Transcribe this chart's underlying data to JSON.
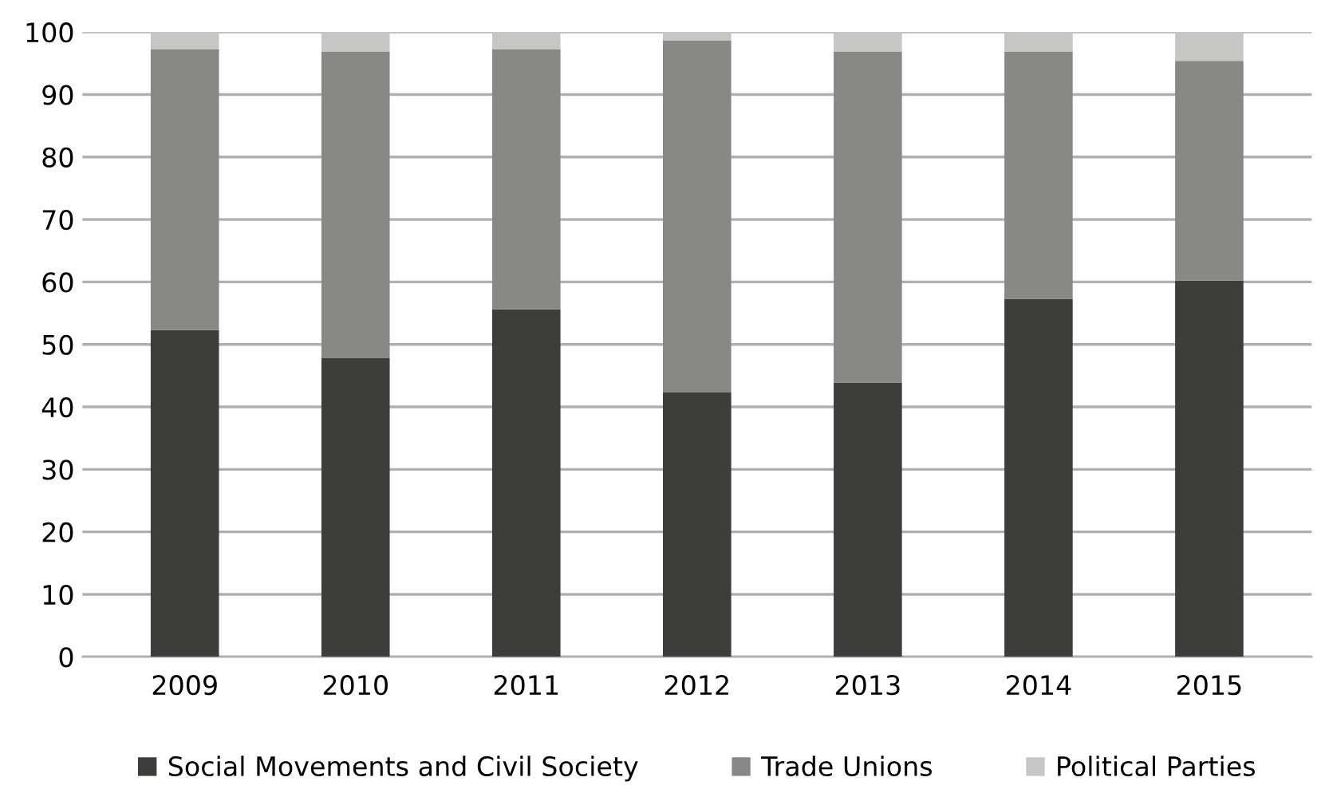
{
  "chart_data": {
    "type": "bar",
    "stacked": true,
    "categories": [
      "2009",
      "2010",
      "2011",
      "2012",
      "2013",
      "2014",
      "2015"
    ],
    "series": [
      {
        "name": "Social Movements and Civil Society",
        "color": "#3d3d3b",
        "values": [
          52.3,
          47.8,
          55.6,
          42.3,
          43.9,
          57.3,
          60.2
        ]
      },
      {
        "name": "Trade Unions",
        "color": "#888886",
        "values": [
          44.9,
          49.1,
          41.6,
          56.3,
          53.0,
          39.6,
          35.2
        ]
      },
      {
        "name": "Political Parties",
        "color": "#c6c6c4",
        "values": [
          2.8,
          3.1,
          2.8,
          1.4,
          3.1,
          3.1,
          4.6
        ]
      }
    ],
    "ylim": [
      0,
      100
    ],
    "yticks": [
      0,
      10,
      20,
      30,
      40,
      50,
      60,
      70,
      80,
      90,
      100
    ],
    "grid": "y",
    "legend": "bottom"
  }
}
